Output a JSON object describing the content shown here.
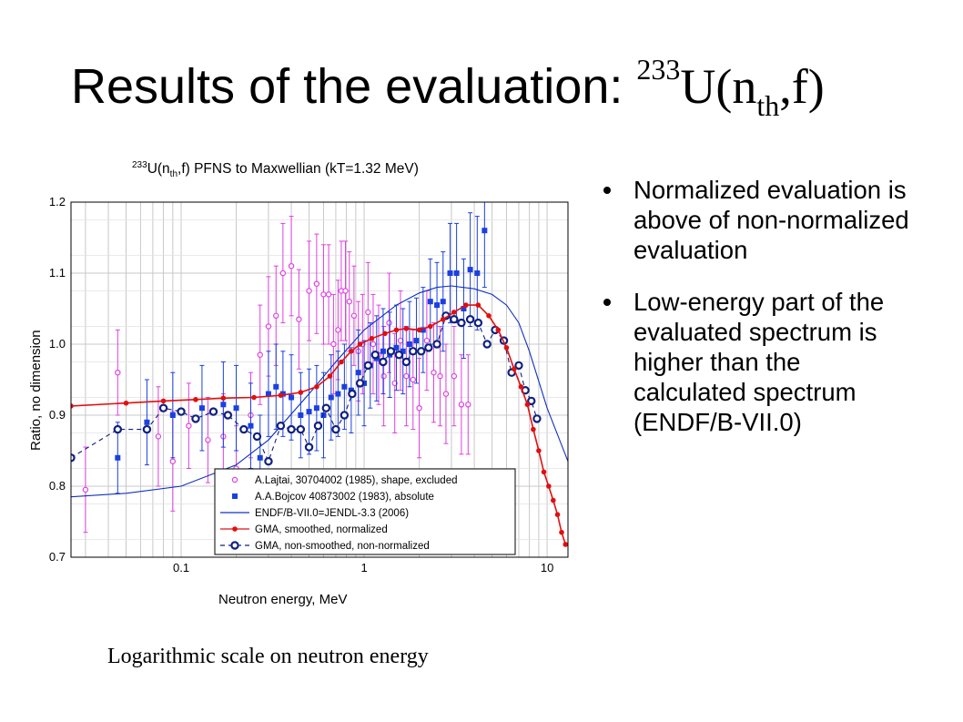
{
  "slide": {
    "title_prefix": "Results of the evaluation:",
    "title_mass": "233",
    "title_u": "U(n",
    "title_sub": "th",
    "title_suffix": ",f)",
    "caption": "Logarithmic scale on neutron energy",
    "bullets": [
      "Normalized evaluation is above of non-normalized evaluation",
      "Low-energy part of the evaluated spectrum is higher than the calculated spectrum (ENDF/B-VII.0)"
    ]
  },
  "chart_data": {
    "type": "scatter",
    "title_mass": "233",
    "title_main": "U(n",
    "title_sub": "th",
    "title_rest": ",f) PFNS to Maxwellian (kT=1.32 MeV)",
    "xlabel": "Neutron energy, MeV",
    "ylabel": "Ratio, no dimension",
    "x_scale": "log",
    "xlim": [
      0.025,
      13
    ],
    "ylim": [
      0.7,
      1.2
    ],
    "x_ticks": [
      {
        "value": 0.1,
        "label": "0.1"
      },
      {
        "value": 1,
        "label": "1"
      },
      {
        "value": 10,
        "label": "10"
      }
    ],
    "y_ticks": [
      {
        "value": 0.7,
        "label": "0.7"
      },
      {
        "value": 0.8,
        "label": "0.8"
      },
      {
        "value": 0.9,
        "label": "0.9"
      },
      {
        "value": 1.0,
        "label": "1.0"
      },
      {
        "value": 1.1,
        "label": "1.1"
      },
      {
        "value": 1.2,
        "label": "1.2"
      }
    ],
    "grid": true,
    "legend_position": "bottom-right",
    "series": [
      {
        "name": "A.Lajtai, 30704002 (1985), shape, excluded",
        "color": "#e040e0",
        "style": "open-circle-errorbar",
        "x": [
          0.03,
          0.045,
          0.075,
          0.09,
          0.11,
          0.14,
          0.17,
          0.2,
          0.24,
          0.27,
          0.3,
          0.33,
          0.36,
          0.4,
          0.44,
          0.5,
          0.55,
          0.6,
          0.64,
          0.68,
          0.72,
          0.75,
          0.79,
          0.83,
          0.88,
          0.93,
          0.98,
          1.05,
          1.12,
          1.2,
          1.28,
          1.37,
          1.47,
          1.58,
          1.7,
          1.85,
          2.0,
          2.2,
          2.4,
          2.6,
          2.8,
          3.1,
          3.4,
          3.7
        ],
        "y": [
          0.795,
          0.96,
          0.87,
          0.835,
          0.885,
          0.865,
          0.87,
          0.825,
          0.9,
          0.985,
          1.025,
          1.04,
          1.1,
          1.11,
          1.035,
          1.075,
          1.085,
          1.07,
          1.07,
          1.0,
          1.02,
          1.075,
          1.075,
          1.06,
          1.04,
          0.99,
          1.0,
          1.045,
          1.0,
          0.985,
          0.955,
          1.03,
          0.945,
          1.005,
          0.955,
          0.95,
          0.91,
          1.005,
          0.96,
          0.955,
          0.93,
          0.955,
          0.915,
          0.915
        ],
        "err": [
          0.06,
          0.06,
          0.07,
          0.07,
          0.06,
          0.06,
          0.06,
          0.06,
          0.06,
          0.07,
          0.07,
          0.07,
          0.07,
          0.07,
          0.07,
          0.07,
          0.07,
          0.07,
          0.07,
          0.07,
          0.07,
          0.07,
          0.07,
          0.07,
          0.07,
          0.07,
          0.07,
          0.07,
          0.07,
          0.07,
          0.07,
          0.07,
          0.07,
          0.07,
          0.07,
          0.07,
          0.07,
          0.07,
          0.07,
          0.07,
          0.07,
          0.07,
          0.07,
          0.07
        ]
      },
      {
        "name": "A.A.Bojcov 40873002 (1983), absolute",
        "color": "#1a40e0",
        "style": "filled-square-errorbar",
        "x": [
          0.045,
          0.065,
          0.09,
          0.13,
          0.17,
          0.2,
          0.24,
          0.27,
          0.3,
          0.33,
          0.36,
          0.4,
          0.45,
          0.5,
          0.55,
          0.6,
          0.66,
          0.72,
          0.78,
          0.85,
          0.93,
          1.0,
          1.08,
          1.17,
          1.27,
          1.38,
          1.5,
          1.63,
          1.77,
          1.93,
          2.1,
          2.3,
          2.5,
          2.7,
          2.95,
          3.2,
          3.5,
          3.8,
          4.15,
          4.55
        ],
        "y": [
          0.84,
          0.89,
          0.9,
          0.91,
          0.915,
          0.91,
          0.885,
          0.84,
          0.93,
          0.94,
          0.93,
          0.925,
          0.9,
          0.905,
          0.91,
          0.9,
          0.925,
          0.93,
          0.94,
          0.935,
          0.96,
          0.945,
          0.97,
          0.98,
          0.99,
          0.985,
          0.995,
          0.99,
          1.0,
          1.005,
          1.02,
          1.06,
          1.055,
          1.06,
          1.1,
          1.1,
          1.05,
          1.105,
          1.1,
          1.16
        ],
        "err": [
          0.05,
          0.06,
          0.06,
          0.06,
          0.06,
          0.06,
          0.06,
          0.06,
          0.06,
          0.06,
          0.06,
          0.06,
          0.06,
          0.06,
          0.06,
          0.06,
          0.06,
          0.06,
          0.06,
          0.06,
          0.06,
          0.06,
          0.06,
          0.06,
          0.06,
          0.06,
          0.06,
          0.06,
          0.06,
          0.06,
          0.06,
          0.06,
          0.06,
          0.07,
          0.07,
          0.07,
          0.07,
          0.08,
          0.08,
          0.08
        ]
      },
      {
        "name": "ENDF/B-VII.0=JENDL-3.3 (2006)",
        "color": "#1030c0",
        "style": "line",
        "x": [
          0.025,
          0.05,
          0.1,
          0.2,
          0.3,
          0.5,
          0.7,
          1.0,
          1.5,
          2.0,
          2.5,
          3.0,
          4.0,
          5.0,
          6.0,
          7.0,
          8.0,
          10.0,
          13.0
        ],
        "y": [
          0.785,
          0.79,
          0.8,
          0.83,
          0.865,
          0.93,
          0.975,
          1.02,
          1.055,
          1.072,
          1.08,
          1.082,
          1.078,
          1.07,
          1.055,
          1.03,
          0.99,
          0.91,
          0.835
        ]
      },
      {
        "name": "GMA, smoothed, normalized",
        "color": "#e01010",
        "style": "line-filled-circle",
        "x": [
          0.025,
          0.05,
          0.08,
          0.12,
          0.17,
          0.25,
          0.35,
          0.45,
          0.55,
          0.65,
          0.75,
          0.85,
          0.95,
          1.1,
          1.3,
          1.5,
          1.7,
          2.0,
          2.3,
          2.7,
          3.1,
          3.6,
          4.2,
          4.8,
          5.4,
          6.0,
          6.6,
          7.2,
          7.8,
          8.4,
          9.0,
          9.6,
          10.2,
          10.8,
          11.4,
          12.0,
          12.6
        ],
        "y": [
          0.913,
          0.917,
          0.92,
          0.922,
          0.924,
          0.925,
          0.928,
          0.932,
          0.94,
          0.955,
          0.975,
          0.99,
          1.0,
          1.008,
          1.015,
          1.02,
          1.022,
          1.02,
          1.025,
          1.035,
          1.045,
          1.055,
          1.055,
          1.04,
          1.02,
          0.995,
          0.965,
          0.94,
          0.915,
          0.88,
          0.85,
          0.82,
          0.8,
          0.78,
          0.76,
          0.735,
          0.718
        ]
      },
      {
        "name": "GMA, non-smoothed, non-normalized",
        "color": "#102080",
        "style": "dashed-open-circle",
        "x": [
          0.025,
          0.045,
          0.065,
          0.08,
          0.1,
          0.12,
          0.15,
          0.18,
          0.22,
          0.26,
          0.3,
          0.35,
          0.4,
          0.45,
          0.5,
          0.56,
          0.62,
          0.7,
          0.78,
          0.86,
          0.95,
          1.05,
          1.15,
          1.27,
          1.4,
          1.55,
          1.7,
          1.85,
          2.05,
          2.25,
          2.5,
          2.8,
          3.1,
          3.4,
          3.8,
          4.2,
          4.7,
          5.2,
          5.8,
          6.4,
          7.0,
          7.6,
          8.2,
          8.8
        ],
        "y": [
          0.84,
          0.88,
          0.88,
          0.91,
          0.905,
          0.895,
          0.905,
          0.9,
          0.88,
          0.87,
          0.835,
          0.885,
          0.88,
          0.88,
          0.855,
          0.885,
          0.91,
          0.88,
          0.9,
          0.93,
          0.945,
          0.97,
          0.985,
          0.975,
          0.99,
          0.985,
          0.975,
          0.99,
          0.99,
          0.995,
          1.0,
          1.04,
          1.035,
          1.03,
          1.035,
          1.03,
          1.0,
          1.02,
          1.005,
          0.96,
          0.97,
          0.935,
          0.92,
          0.895
        ]
      }
    ]
  }
}
